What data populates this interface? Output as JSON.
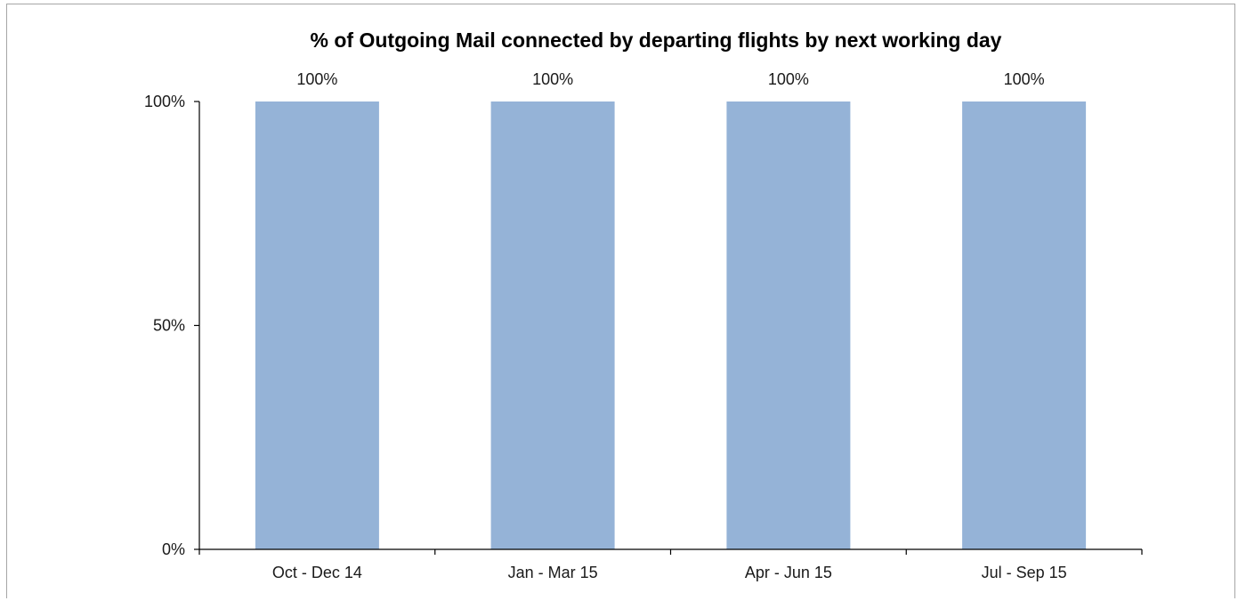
{
  "colors": {
    "bar": "#95b3d7",
    "axis": "#000000",
    "frame": "#a6a6a6"
  },
  "chart_data": {
    "type": "bar",
    "title": "% of Outgoing Mail connected by departing flights by next working day",
    "xlabel": "",
    "ylabel": "",
    "categories": [
      "Oct - Dec 14",
      "Jan - Mar 15",
      "Apr - Jun 15",
      "Jul - Sep 15"
    ],
    "values": [
      100,
      100,
      100,
      100
    ],
    "data_labels": [
      "100%",
      "100%",
      "100%",
      "100%"
    ],
    "yticks": [
      0,
      50,
      100
    ],
    "ytick_labels": [
      "0%",
      "50%",
      "100%"
    ],
    "ylim": [
      0,
      100
    ],
    "grid": false,
    "legend": "none"
  }
}
